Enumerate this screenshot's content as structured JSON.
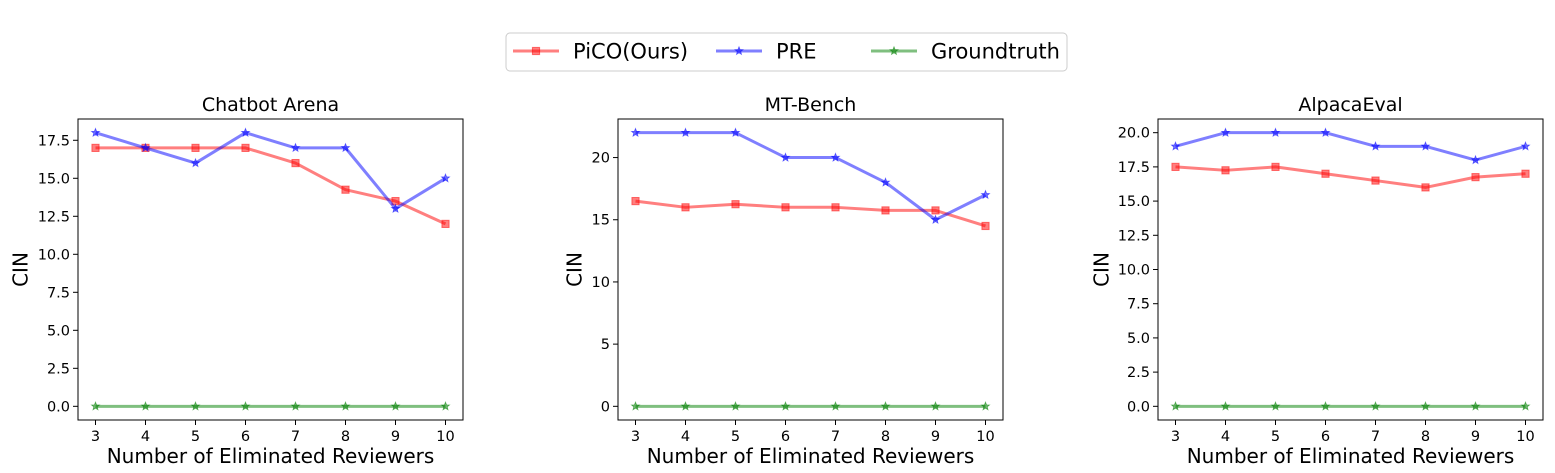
{
  "legend": {
    "entries": [
      {
        "label": "PiCO(Ours)",
        "color": "#ff0000",
        "marker": "square"
      },
      {
        "label": "PRE",
        "color": "#0000ff",
        "marker": "star"
      },
      {
        "label": "Groundtruth",
        "color": "#008000",
        "marker": "star"
      }
    ],
    "placement": "top-center"
  },
  "chart_data": [
    {
      "type": "line",
      "title": "Chatbot Arena",
      "xlabel": "Number of Eliminated Reviewers",
      "ylabel": "CIN",
      "x": [
        3,
        4,
        5,
        6,
        7,
        8,
        9,
        10
      ],
      "xticks": [
        "3",
        "4",
        "5",
        "6",
        "7",
        "8",
        "9",
        "10"
      ],
      "ylim": [
        -0.9,
        18.9
      ],
      "yticks": [
        0.0,
        2.5,
        5.0,
        7.5,
        10.0,
        12.5,
        15.0,
        17.5
      ],
      "yticklabels": [
        "0.0",
        "2.5",
        "5.0",
        "7.5",
        "10.0",
        "12.5",
        "15.0",
        "17.5"
      ],
      "series": [
        {
          "name": "PiCO(Ours)",
          "values": [
            17,
            17,
            17,
            17,
            16,
            14.25,
            13.5,
            12
          ]
        },
        {
          "name": "PRE",
          "values": [
            18,
            17,
            16,
            18,
            17,
            17,
            13,
            15
          ]
        },
        {
          "name": "Groundtruth",
          "values": [
            0,
            0,
            0,
            0,
            0,
            0,
            0,
            0
          ]
        }
      ]
    },
    {
      "type": "line",
      "title": "MT-Bench",
      "xlabel": "Number of Eliminated Reviewers",
      "ylabel": "CIN",
      "x": [
        3,
        4,
        5,
        6,
        7,
        8,
        9,
        10
      ],
      "xticks": [
        "3",
        "4",
        "5",
        "6",
        "7",
        "8",
        "9",
        "10"
      ],
      "ylim": [
        -1.1,
        23.1
      ],
      "yticks": [
        0,
        5,
        10,
        15,
        20
      ],
      "yticklabels": [
        "0",
        "5",
        "10",
        "15",
        "20"
      ],
      "series": [
        {
          "name": "PiCO(Ours)",
          "values": [
            16.5,
            16,
            16.25,
            16,
            16,
            15.75,
            15.75,
            14.5
          ]
        },
        {
          "name": "PRE",
          "values": [
            22,
            22,
            22,
            20,
            20,
            18,
            15,
            17
          ]
        },
        {
          "name": "Groundtruth",
          "values": [
            0,
            0,
            0,
            0,
            0,
            0,
            0,
            0
          ]
        }
      ]
    },
    {
      "type": "line",
      "title": "AlpacaEval",
      "xlabel": "Number of Eliminated Reviewers",
      "ylabel": "CIN",
      "x": [
        3,
        4,
        5,
        6,
        7,
        8,
        9,
        10
      ],
      "xticks": [
        "3",
        "4",
        "5",
        "6",
        "7",
        "8",
        "9",
        "10"
      ],
      "ylim": [
        -1.0,
        21.0
      ],
      "yticks": [
        0.0,
        2.5,
        5.0,
        7.5,
        10.0,
        12.5,
        15.0,
        17.5,
        20.0
      ],
      "yticklabels": [
        "0.0",
        "2.5",
        "5.0",
        "7.5",
        "10.0",
        "12.5",
        "15.0",
        "17.5",
        "20.0"
      ],
      "series": [
        {
          "name": "PiCO(Ours)",
          "values": [
            17.5,
            17.25,
            17.5,
            17,
            16.5,
            16,
            16.75,
            17
          ]
        },
        {
          "name": "PRE",
          "values": [
            19,
            20,
            20,
            20,
            19,
            19,
            18,
            19
          ]
        },
        {
          "name": "Groundtruth",
          "values": [
            0,
            0,
            0,
            0,
            0,
            0,
            0,
            0
          ]
        }
      ]
    }
  ]
}
